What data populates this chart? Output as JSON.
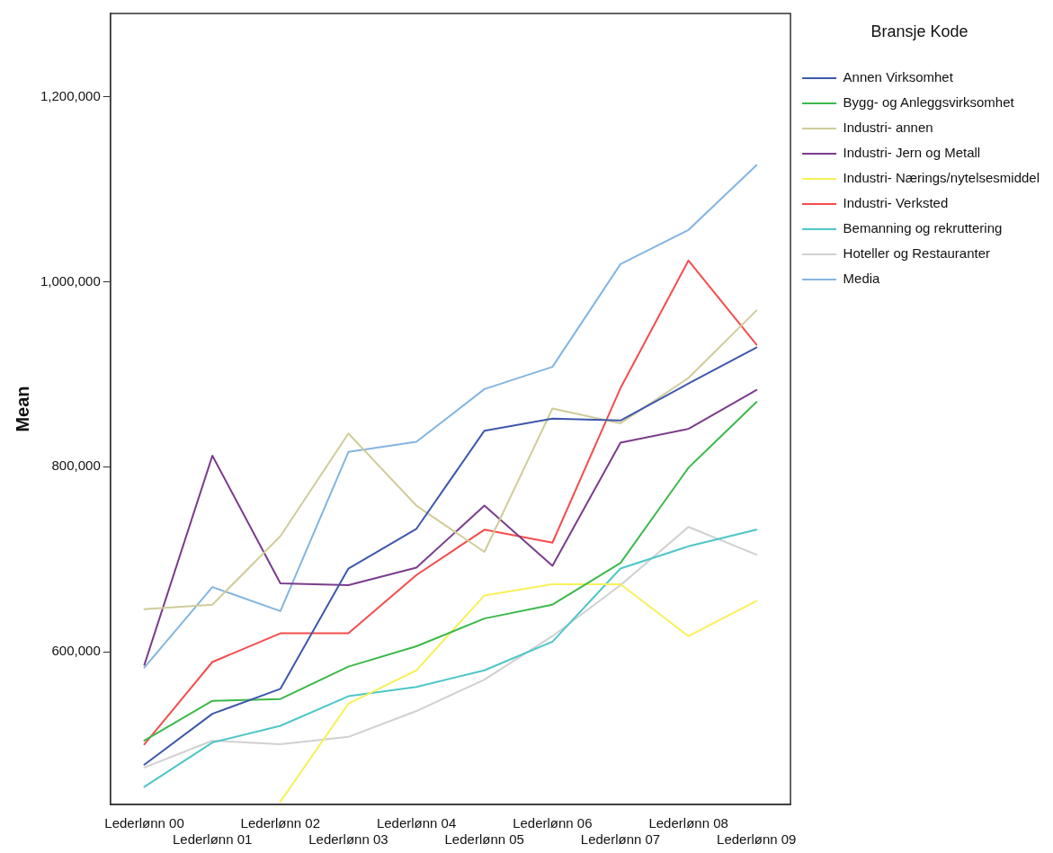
{
  "chart_data": {
    "type": "line",
    "categories": [
      "Lederlønn 00",
      "Lederlønn 01",
      "Lederlønn 02",
      "Lederlønn 03",
      "Lederlønn 04",
      "Lederlønn 05",
      "Lederlønn 06",
      "Lederlønn 07",
      "Lederlønn 08",
      "Lederlønn 09"
    ],
    "ylabel": "Mean",
    "legend_title": "Bransje Kode",
    "ylim": [
      435000,
      1290000
    ],
    "yticks": [
      {
        "value": 600000,
        "label": "600,000"
      },
      {
        "value": 800000,
        "label": "800,000"
      },
      {
        "value": 1000000,
        "label": "1,000,000"
      },
      {
        "value": 1200000,
        "label": "1,200,000"
      }
    ],
    "grid": false,
    "legend": "right",
    "marker": "none",
    "line_style": "solid",
    "series": [
      {
        "name": "Annen Virksomhet",
        "color": "#3e58ac",
        "values": [
          478000,
          533000,
          560000,
          690000,
          733000,
          839000,
          852000,
          850000,
          890000,
          929000
        ]
      },
      {
        "name": "Bygg- og Anleggsvirksomhet",
        "color": "#3cb94a",
        "values": [
          504000,
          547000,
          549000,
          584000,
          606000,
          636000,
          651000,
          696000,
          799000,
          870000
        ]
      },
      {
        "name": "Industri- annen",
        "color": "#d0cc99",
        "values": [
          646000,
          651000,
          725000,
          836000,
          758000,
          708000,
          863000,
          847000,
          896000,
          969000
        ]
      },
      {
        "name": "Industri- Jern og Metall",
        "color": "#7b3c8c",
        "values": [
          586000,
          812000,
          674000,
          672000,
          691000,
          758000,
          693000,
          826000,
          841000,
          883000
        ]
      },
      {
        "name": "Industri- Nærings/nytelsesmiddel",
        "color": "#f8f05a",
        "values": [
          null,
          null,
          438000,
          544000,
          580000,
          661000,
          673000,
          673000,
          617000,
          655000
        ]
      },
      {
        "name": "Industri- Verksted",
        "color": "#f54c4c",
        "values": [
          500000,
          589000,
          620000,
          620000,
          683000,
          732000,
          718000,
          885000,
          1023000,
          932000
        ]
      },
      {
        "name": "Bemanning og rekruttering",
        "color": "#4dc6c8",
        "values": [
          454000,
          502000,
          520000,
          552000,
          562000,
          580000,
          611000,
          690000,
          714000,
          732000
        ]
      },
      {
        "name": "Hoteller og Restauranter",
        "color": "#d0d0d0",
        "values": [
          475000,
          504000,
          500000,
          508000,
          536000,
          570000,
          617000,
          672000,
          735000,
          705000
        ]
      },
      {
        "name": "Media",
        "color": "#84b5e0",
        "values": [
          583000,
          670000,
          644000,
          816000,
          827000,
          884000,
          908000,
          1019000,
          1056000,
          1126000
        ]
      }
    ]
  }
}
